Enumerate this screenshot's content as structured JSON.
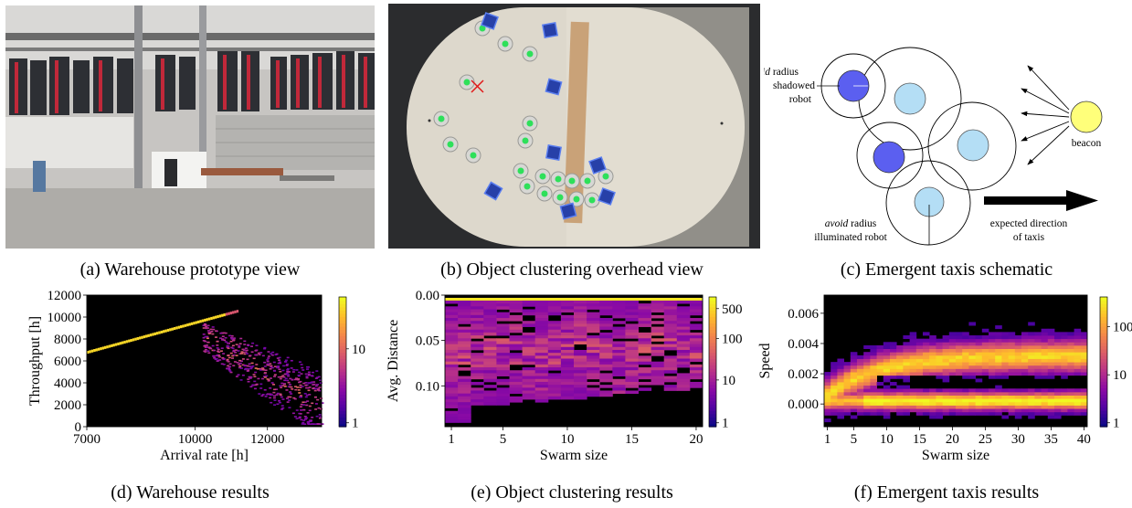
{
  "captions": {
    "a": "(a) Warehouse prototype view",
    "b": "(b) Object clustering overhead view",
    "c": "(c) Emergent taxis schematic",
    "d": "(d) Warehouse results",
    "e": "(e) Object clustering results",
    "f": "(f) Emergent taxis results"
  },
  "schematic": {
    "avoid_word": "avoid",
    "shadowed_line1": " radius",
    "shadowed_line2": "shadowed",
    "shadowed_line3": "robot",
    "illuminated_line1": " radius",
    "illuminated_line2": "illuminated robot",
    "beacon": "beacon",
    "direction_line1": "expected direction",
    "direction_line2": "of taxis"
  },
  "chart_data": [
    {
      "id": "d",
      "type": "heatmap",
      "xlabel": "Arrival rate [h]",
      "ylabel": "Throughput [h]",
      "x_ticks": [
        "7000",
        "10000",
        "12000"
      ],
      "y_ticks": [
        "0",
        "2000",
        "4000",
        "6000",
        "8000",
        "10000",
        "12000"
      ],
      "xlim": [
        7000,
        13500
      ],
      "ylim": [
        0,
        12000
      ],
      "colorbar": {
        "scale": "log",
        "ticks": [
          "1",
          "10"
        ]
      }
    },
    {
      "id": "e",
      "type": "heatmap",
      "xlabel": "Swarm size",
      "ylabel": "Avg. Distance",
      "x_ticks": [
        "1",
        "5",
        "10",
        "15",
        "20"
      ],
      "y_ticks": [
        "0.00",
        "0.05",
        "0.10"
      ],
      "xlim": [
        0.5,
        20.5
      ],
      "ylim": [
        0.145,
        0.0
      ],
      "colorbar": {
        "scale": "log",
        "ticks": [
          "1",
          "10",
          "100",
          "500"
        ]
      }
    },
    {
      "id": "f",
      "type": "heatmap",
      "xlabel": "Swarm size",
      "ylabel": "Speed",
      "x_ticks": [
        "1",
        "5",
        "10",
        "15",
        "20",
        "25",
        "30",
        "35",
        "40"
      ],
      "y_ticks": [
        "0.000",
        "0.002",
        "0.004",
        "0.006"
      ],
      "xlim": [
        0.5,
        40.5
      ],
      "ylim": [
        -0.0015,
        0.0072
      ],
      "colorbar": {
        "scale": "log",
        "ticks": [
          "1",
          "10",
          "100"
        ]
      }
    }
  ]
}
